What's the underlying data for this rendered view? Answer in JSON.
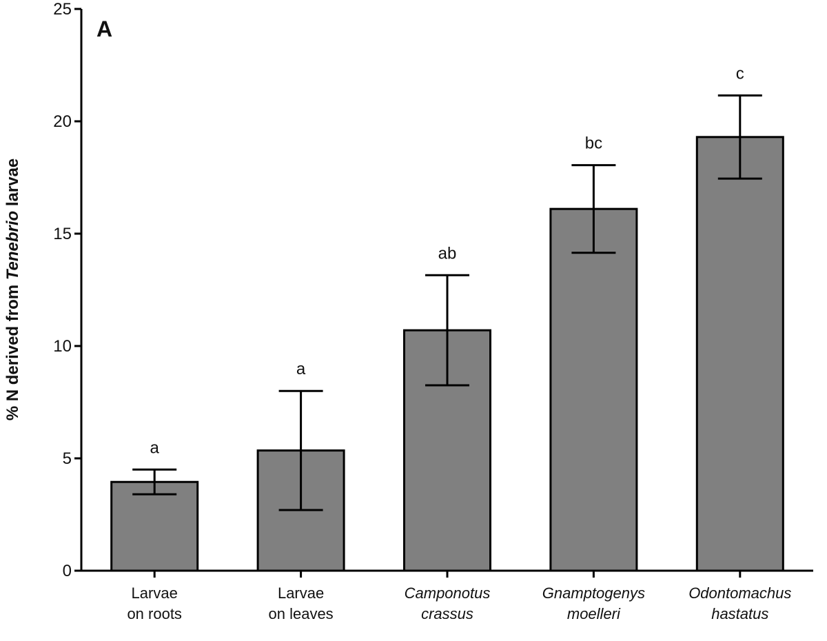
{
  "chart_data": {
    "type": "bar",
    "panel_label": "A",
    "ylabel": {
      "prefix": "% N derived from ",
      "italic": "Tenebrio",
      "suffix": " larvae"
    },
    "ylim": [
      0,
      25
    ],
    "yticks": [
      0,
      5,
      10,
      15,
      20,
      25
    ],
    "grid": false,
    "categories": [
      {
        "lines": [
          "Larvae",
          "on roots"
        ],
        "italic": false
      },
      {
        "lines": [
          "Larvae",
          "on leaves"
        ],
        "italic": false
      },
      {
        "lines": [
          "Camponotus",
          "crassus"
        ],
        "italic": true
      },
      {
        "lines": [
          "Gnamptogenys",
          "moelleri"
        ],
        "italic": true
      },
      {
        "lines": [
          "Odontomachus",
          "hastatus"
        ],
        "italic": true
      }
    ],
    "values": [
      3.95,
      5.35,
      10.7,
      16.1,
      19.3
    ],
    "error": [
      0.55,
      2.65,
      2.45,
      1.95,
      1.85
    ],
    "significance": [
      "a",
      "a",
      "ab",
      "bc",
      "c"
    ],
    "bar_color": "#808080",
    "edge_color": "#000000"
  }
}
